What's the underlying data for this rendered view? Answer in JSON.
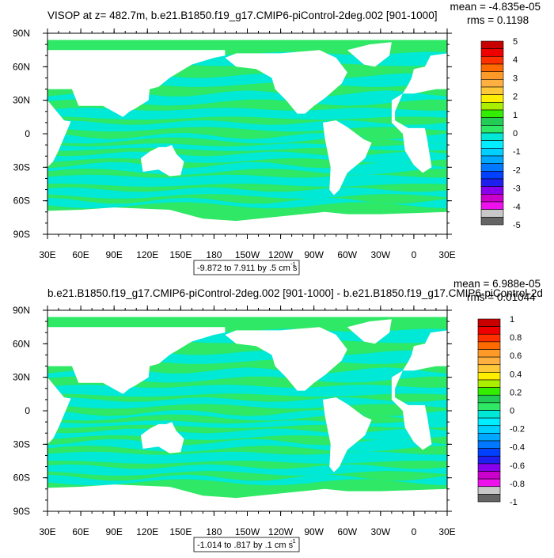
{
  "colors": {
    "ocean_green": "#2ee866",
    "ocean_cyan": "#00e8d6",
    "land": "#ffffff",
    "frame": "#000000"
  },
  "chart_data": [
    {
      "type": "heatmap",
      "title": "VISOP at z= 482.7m, b.e21.B1850.f19_g17.CMIP6-piControl-2deg.002 [901-1000]",
      "stats": [
        "mean = -4.835e-05",
        "rms = 0.1198"
      ],
      "x_tick_labels": [
        "30E",
        "60E",
        "90E",
        "120E",
        "150E",
        "180",
        "150W",
        "120W",
        "90W",
        "60W",
        "30W",
        "0",
        "30E"
      ],
      "y_tick_labels": [
        "90N",
        "60N",
        "30N",
        "0",
        "30S",
        "60S",
        "90S"
      ],
      "xlim": [
        30,
        390
      ],
      "ylim": [
        -90,
        90
      ],
      "range_note": "-9.872 to 7.911 by .5 cm s",
      "range_sup": "-1",
      "colorbar_labels": [
        "5",
        "4",
        "3",
        "2",
        "1",
        "0",
        "-1",
        "-2",
        "-3",
        "-4",
        "-5"
      ],
      "colorbar_colors": [
        "#c80000",
        "#ee0000",
        "#ff3000",
        "#ff6a00",
        "#ff9a28",
        "#ffb040",
        "#ffc838",
        "#ffee00",
        "#aaee00",
        "#33ee00",
        "#22cc55",
        "#2ee866",
        "#00e8d6",
        "#00eeff",
        "#00d0ff",
        "#00a8ff",
        "#0078ff",
        "#0040ff",
        "#2020ee",
        "#8800ee",
        "#cc00cc",
        "#ee11ee",
        "#c8c8c8",
        "#646464"
      ]
    },
    {
      "type": "heatmap",
      "title": "b.e21.B1850.f19_g17.CMIP6-piControl-2deg.002 [901-1000] - b.e21.B1850.f19_g17.CMIP6-piControl-2d",
      "stats": [
        "mean = 6.988e-05",
        "rms = 0.01044"
      ],
      "x_tick_labels": [
        "30E",
        "60E",
        "90E",
        "120E",
        "150E",
        "180",
        "150W",
        "120W",
        "90W",
        "60W",
        "30W",
        "0",
        "30E"
      ],
      "y_tick_labels": [
        "90N",
        "60N",
        "30N",
        "0",
        "30S",
        "60S",
        "90S"
      ],
      "xlim": [
        30,
        390
      ],
      "ylim": [
        -90,
        90
      ],
      "range_note": "-1.014 to .817 by .1 cm s",
      "range_sup": "-1",
      "colorbar_labels": [
        "1",
        "0.8",
        "0.6",
        "0.4",
        "0.2",
        "0",
        "-0.2",
        "-0.4",
        "-0.6",
        "-0.8",
        "-1"
      ],
      "colorbar_colors": [
        "#c80000",
        "#ee0000",
        "#ff3000",
        "#ff6a00",
        "#ff9a28",
        "#ffb040",
        "#ffc838",
        "#ffee00",
        "#aaee00",
        "#33ee00",
        "#22cc55",
        "#2ee866",
        "#00e8d6",
        "#00eeff",
        "#00d0ff",
        "#00a8ff",
        "#0078ff",
        "#0040ff",
        "#2020ee",
        "#8800ee",
        "#cc00cc",
        "#ee11ee",
        "#c8c8c8",
        "#646464"
      ]
    }
  ]
}
